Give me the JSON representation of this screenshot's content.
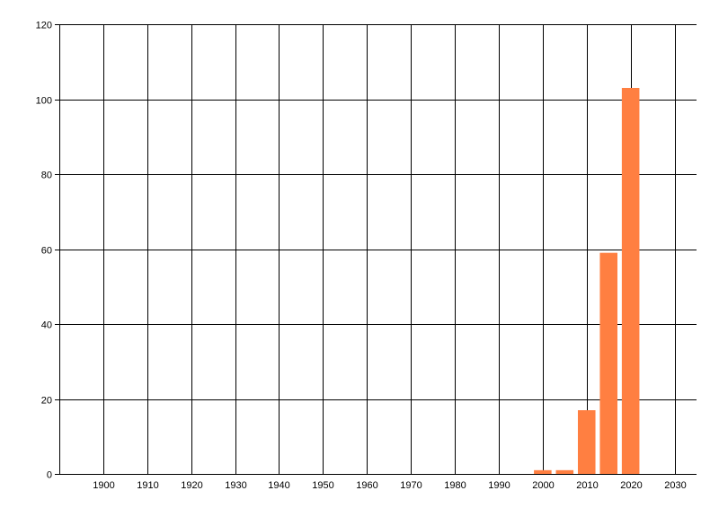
{
  "chart_data": {
    "type": "bar",
    "title": "",
    "xlabel": "",
    "ylabel": "",
    "x": [
      2000,
      2005,
      2010,
      2015,
      2020
    ],
    "values": [
      1,
      1,
      17,
      59,
      103
    ],
    "bar_width_years": 4,
    "xlim": [
      1890,
      2035
    ],
    "ylim": [
      0,
      120
    ],
    "x_ticks": [
      1900,
      1910,
      1920,
      1930,
      1940,
      1950,
      1960,
      1970,
      1980,
      1990,
      2000,
      2010,
      2020,
      2030
    ],
    "y_ticks": [
      0,
      20,
      40,
      60,
      80,
      100,
      120
    ],
    "grid": true,
    "legend": "none",
    "bar_color": "#FF7F41",
    "grid_color": "#000000"
  }
}
